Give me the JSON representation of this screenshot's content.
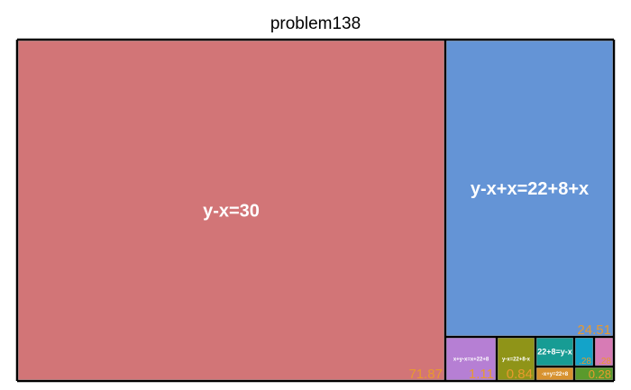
{
  "chart_data": {
    "type": "treemap",
    "title": "problem138",
    "items": [
      {
        "label": "y-x=30",
        "value": 71.87,
        "value_text": "71.87",
        "color": "#d27577"
      },
      {
        "label": "y-x+x=22+8+x",
        "value": 24.51,
        "value_text": "24.51",
        "color": "#6494d6"
      },
      {
        "label": "x+y-x=x+22+8",
        "value": 1.11,
        "value_text": "1.11",
        "color": "#b67fd4"
      },
      {
        "label": "y-x=22+8-x",
        "value": 0.84,
        "value_text": "0.84",
        "color": "#8f9418"
      },
      {
        "label": "22+8=y-x",
        "value": 0.55,
        "value_text": "",
        "color": "#179c94"
      },
      {
        "label": "-x+y=22+8",
        "value": 0.28,
        "value_text": "",
        "color": "#d7922f"
      },
      {
        "label": "",
        "value": 0.28,
        "value_text": ".28",
        "color": "#13a3c9"
      },
      {
        "label": "",
        "value": 0.28,
        "value_text": ".28",
        "color": "#d77bb5"
      },
      {
        "label": "",
        "value": 0.28,
        "value_text": "0.28",
        "color": "#5a9a2c"
      }
    ]
  }
}
